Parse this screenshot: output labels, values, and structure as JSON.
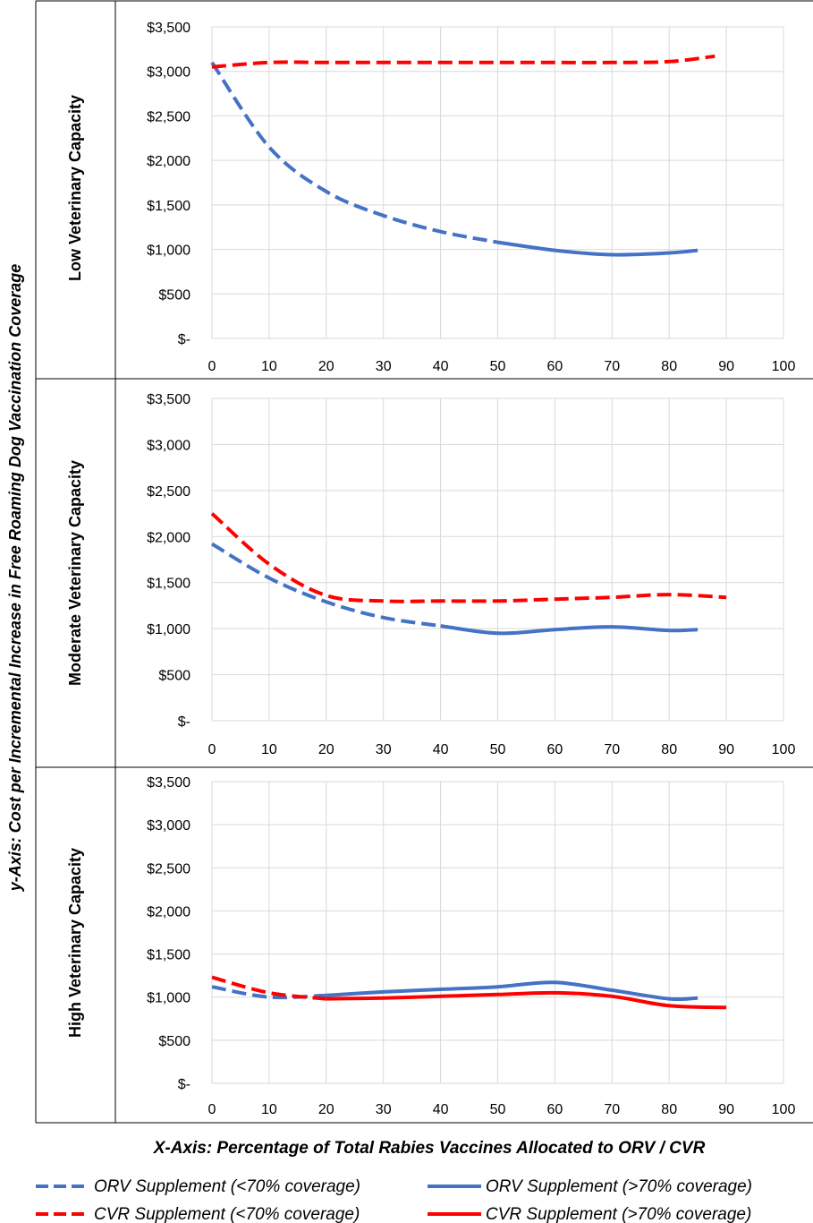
{
  "chart_data": {
    "type": "line",
    "ylabel": "y-Axis: Cost per Incremental Increase in Free Roaming Dog Vaccination Coverage",
    "xlabel": "X-Axis: Percentage of Total Rabies Vaccines Allocated to ORV / CVR",
    "x_ticks": [
      "0",
      "10",
      "20",
      "30",
      "40",
      "50",
      "60",
      "70",
      "80",
      "90",
      "100"
    ],
    "y_ticks": [
      "$-",
      "$500",
      "$1,000",
      "$1,500",
      "$2,000",
      "$2,500",
      "$3,000",
      "$3,500"
    ],
    "xlim": [
      0,
      100
    ],
    "ylim": [
      0,
      3500
    ],
    "grid": true,
    "legend_position": "bottom",
    "legend": [
      {
        "label": "ORV Supplement (<70% coverage)",
        "color": "#4472C4",
        "style": "dashed"
      },
      {
        "label": "ORV Supplement (>70% coverage)",
        "color": "#4472C4",
        "style": "solid"
      },
      {
        "label": "CVR Supplement (<70% coverage)",
        "color": "#FF0000",
        "style": "dashed"
      },
      {
        "label": "CVR Supplement (>70% coverage)",
        "color": "#FF0000",
        "style": "solid"
      }
    ],
    "panels": [
      {
        "row_label": "Low Veterinary Capacity",
        "series": [
          {
            "legend_index": 0,
            "color": "#4472C4",
            "style": "dashed",
            "points": [
              [
                0,
                3100
              ],
              [
                10,
                2150
              ],
              [
                20,
                1650
              ],
              [
                30,
                1380
              ],
              [
                40,
                1200
              ],
              [
                50,
                1080
              ]
            ]
          },
          {
            "legend_index": 1,
            "color": "#4472C4",
            "style": "solid",
            "points": [
              [
                50,
                1080
              ],
              [
                60,
                990
              ],
              [
                70,
                940
              ],
              [
                80,
                960
              ],
              [
                85,
                990
              ]
            ]
          },
          {
            "legend_index": 2,
            "color": "#FF0000",
            "style": "dashed",
            "points": [
              [
                0,
                3050
              ],
              [
                10,
                3100
              ],
              [
                20,
                3100
              ],
              [
                30,
                3100
              ],
              [
                40,
                3100
              ],
              [
                50,
                3100
              ],
              [
                60,
                3100
              ],
              [
                70,
                3100
              ],
              [
                80,
                3110
              ],
              [
                88,
                3170
              ]
            ]
          }
        ]
      },
      {
        "row_label": "Moderate Veterinary Capacity",
        "series": [
          {
            "legend_index": 0,
            "color": "#4472C4",
            "style": "dashed",
            "points": [
              [
                0,
                1920
              ],
              [
                10,
                1550
              ],
              [
                20,
                1290
              ],
              [
                30,
                1120
              ],
              [
                40,
                1030
              ]
            ]
          },
          {
            "legend_index": 1,
            "color": "#4472C4",
            "style": "solid",
            "points": [
              [
                40,
                1030
              ],
              [
                50,
                950
              ],
              [
                60,
                990
              ],
              [
                70,
                1020
              ],
              [
                80,
                980
              ],
              [
                85,
                990
              ]
            ]
          },
          {
            "legend_index": 2,
            "color": "#FF0000",
            "style": "dashed",
            "points": [
              [
                0,
                2250
              ],
              [
                10,
                1700
              ],
              [
                20,
                1360
              ],
              [
                30,
                1300
              ],
              [
                40,
                1300
              ],
              [
                50,
                1300
              ],
              [
                60,
                1320
              ],
              [
                70,
                1340
              ],
              [
                80,
                1370
              ],
              [
                90,
                1340
              ]
            ]
          }
        ]
      },
      {
        "row_label": "High Veterinary Capacity",
        "series": [
          {
            "legend_index": 0,
            "color": "#4472C4",
            "style": "dashed",
            "points": [
              [
                0,
                1120
              ],
              [
                10,
                1000
              ],
              [
                20,
                1020
              ]
            ]
          },
          {
            "legend_index": 1,
            "color": "#4472C4",
            "style": "solid",
            "points": [
              [
                20,
                1020
              ],
              [
                30,
                1060
              ],
              [
                40,
                1090
              ],
              [
                50,
                1120
              ],
              [
                60,
                1170
              ],
              [
                70,
                1080
              ],
              [
                80,
                980
              ],
              [
                85,
                990
              ]
            ]
          },
          {
            "legend_index": 2,
            "color": "#FF0000",
            "style": "dashed",
            "points": [
              [
                0,
                1230
              ],
              [
                10,
                1050
              ],
              [
                20,
                980
              ]
            ]
          },
          {
            "legend_index": 3,
            "color": "#FF0000",
            "style": "solid",
            "points": [
              [
                20,
                980
              ],
              [
                30,
                990
              ],
              [
                40,
                1010
              ],
              [
                50,
                1030
              ],
              [
                60,
                1050
              ],
              [
                70,
                1010
              ],
              [
                80,
                900
              ],
              [
                90,
                880
              ]
            ]
          }
        ]
      }
    ]
  }
}
